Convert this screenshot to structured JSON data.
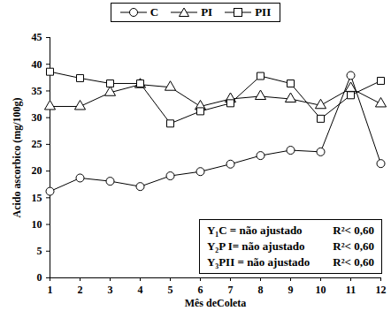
{
  "chart_data": {
    "type": "line",
    "x_label": "Mês deColeta",
    "y_label": "Acido ascorbico (mg/100g)",
    "x": [
      1,
      2,
      3,
      4,
      5,
      6,
      7,
      8,
      9,
      10,
      11,
      12
    ],
    "series": [
      {
        "name": "C",
        "color": "#000000",
        "marker": "circle",
        "values": [
          16.2,
          18.7,
          18.1,
          17.1,
          19.1,
          19.9,
          21.3,
          22.9,
          23.9,
          23.6,
          37.9,
          21.4
        ]
      },
      {
        "name": "PI",
        "color": "#000000",
        "marker": "triangle",
        "values": [
          32.1,
          32.1,
          34.7,
          36.2,
          35.7,
          32.1,
          33.5,
          34.0,
          33.5,
          32.3,
          35.5,
          32.6
        ]
      },
      {
        "name": "PII",
        "color": "#000000",
        "marker": "square",
        "values": [
          38.6,
          37.4,
          36.4,
          36.4,
          28.9,
          31.2,
          32.7,
          37.8,
          36.4,
          29.8,
          34.2,
          36.9
        ]
      }
    ],
    "xlim": [
      1,
      12
    ],
    "xticks": [
      1,
      2,
      3,
      4,
      5,
      6,
      7,
      8,
      9,
      10,
      11,
      12
    ],
    "ylim": [
      0,
      45
    ],
    "yticks": [
      0,
      5,
      10,
      15,
      20,
      25,
      30,
      35,
      40,
      45
    ],
    "legend": "top",
    "annotations": [
      [
        "Y₁C = não ajustado",
        "R²< 0,60"
      ],
      [
        "Y₂P I= não ajustado",
        "R²< 0,60"
      ],
      [
        "Y₃PII = não ajustado",
        "R²< 0,60"
      ]
    ]
  }
}
